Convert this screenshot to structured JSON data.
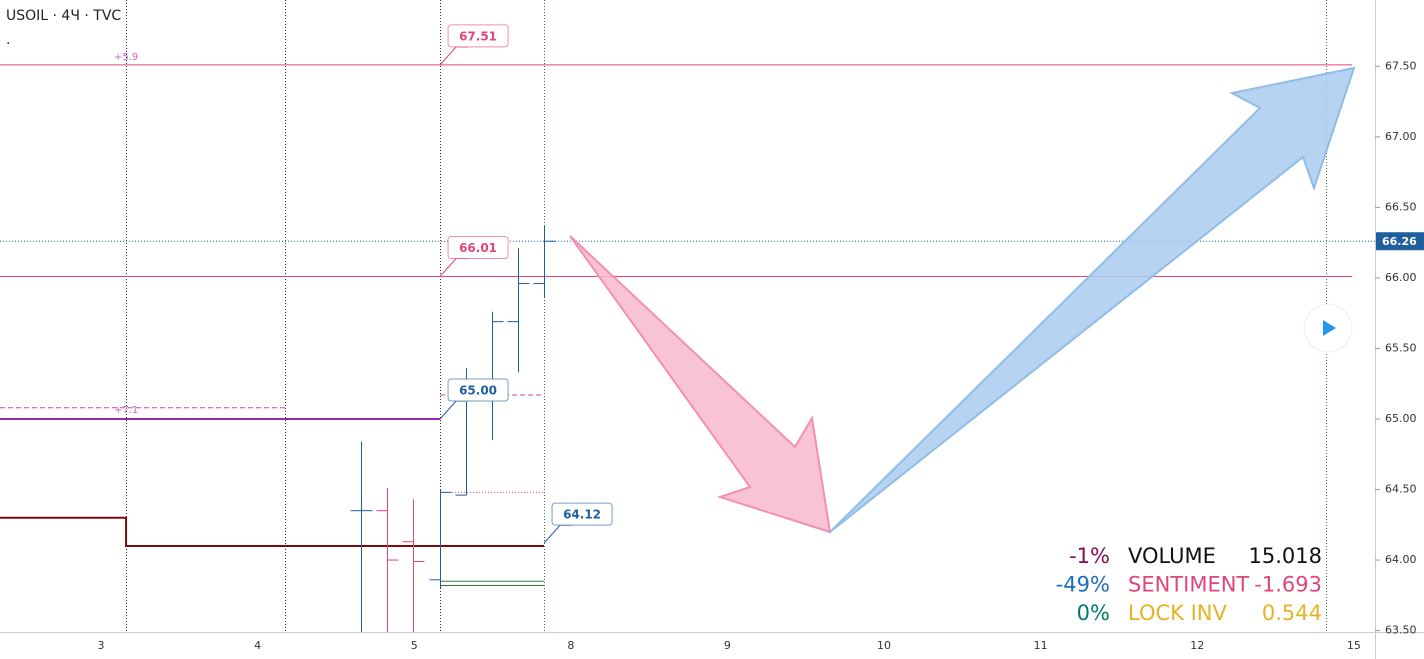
{
  "chart_data": {
    "type": "ohlc",
    "title": "USOIL · 4Ч · TVC",
    "subtitle": ".",
    "xlim": [
      -0.645,
      8.135
    ],
    "categories": [
      "3",
      "4",
      "5",
      "8",
      "9",
      "10",
      "11",
      "12",
      "15"
    ],
    "ylim": [
      63.49,
      67.97
    ],
    "yticks": [
      {
        "value": 63.5,
        "label": "63.50"
      },
      {
        "value": 64,
        "label": "64.00"
      },
      {
        "value": 64.5,
        "label": "64.50"
      },
      {
        "value": 65,
        "label": "65.00"
      },
      {
        "value": 65.5,
        "label": "65.50"
      },
      {
        "value": 66,
        "label": "66.00"
      },
      {
        "value": 66.5,
        "label": "66.50"
      },
      {
        "value": 67,
        "label": "67.00"
      },
      {
        "value": 67.5,
        "label": "67.50"
      }
    ],
    "up_color": "#1f5f9e",
    "down_color": "#e0457b",
    "bars": {
      "x": [
        1.66,
        1.826,
        1.993,
        2.165,
        2.331,
        2.497,
        2.663,
        2.829
      ],
      "open": [
        64.35,
        64.35,
        64.13,
        63.86,
        64.46,
        65.17,
        65.69,
        65.96
      ],
      "high": [
        64.84,
        64.51,
        64.43,
        64.5,
        65.36,
        65.76,
        66.21,
        66.37
      ],
      "low": [
        63.49,
        63.49,
        63.49,
        63.8,
        64.46,
        64.85,
        65.33,
        65.86
      ],
      "close": [
        64.35,
        64.0,
        63.99,
        64.48,
        65.17,
        65.69,
        65.96,
        66.26
      ]
    },
    "lines": [
      {
        "x": [
          -0.645,
          7.99
        ],
        "values": [
          67.51,
          67.51
        ],
        "color": "#e0457b",
        "width": 1,
        "dash": "none"
      },
      {
        "x": [
          -0.645,
          7.99
        ],
        "values": [
          66.01,
          66.01
        ],
        "color": "#e0457b",
        "width": 1,
        "dash": "none"
      },
      {
        "x": [
          -0.645,
          2.165
        ],
        "values": [
          65,
          65
        ],
        "color": "#9c27b0",
        "width": 2,
        "dash": "none"
      },
      {
        "x": [
          -0.645,
          1.175
        ],
        "values": [
          65.08,
          65.08
        ],
        "color": "#d04a9a",
        "width": 1,
        "dash": "5 3"
      },
      {
        "x": [
          2.165,
          2.829
        ],
        "values": [
          65.17,
          65.17
        ],
        "color": "#d04a9a",
        "width": 1,
        "dash": "5 3"
      },
      {
        "x": [
          2.165,
          2.829
        ],
        "values": [
          64.48,
          64.48
        ],
        "color": "#e0457b",
        "width": 1,
        "dash": "1 2"
      },
      {
        "x": [
          -0.645,
          0.16,
          0.16,
          2.829
        ],
        "values": [
          64.3,
          64.3,
          64.1,
          64.1
        ],
        "color": "#7b0a0a",
        "width": 2,
        "dash": "none"
      },
      {
        "x": [
          2.165,
          2.829
        ],
        "values": [
          63.85,
          63.85
        ],
        "color": "#2e7d32",
        "width": 1,
        "dash": "none"
      },
      {
        "x": [
          2.165,
          2.829
        ],
        "values": [
          63.82,
          63.82
        ],
        "color": "#2e7d32",
        "width": 1,
        "dash": "none"
      },
      {
        "x": [
          -0.645,
          8.135
        ],
        "values": [
          66.26,
          66.26
        ],
        "color": "#1f5f9e",
        "width": 1,
        "dash": "1 2"
      }
    ],
    "vlines": [
      {
        "x": 0.16,
        "color": "#333"
      },
      {
        "x": 1.175,
        "color": "#333"
      },
      {
        "x": 2.165,
        "color": "#333"
      },
      {
        "x": 2.829,
        "color": "#2e7d32"
      },
      {
        "x": 7.823,
        "color": "#2e7d32"
      }
    ],
    "price_labels": [
      {
        "x": 2.165,
        "value": 67.51,
        "color": "#e0457b"
      },
      {
        "x": 2.165,
        "value": 66.01,
        "color": "#e0457b"
      },
      {
        "x": 2.165,
        "value": 65,
        "label": "65.00",
        "color": "#1f5f9e"
      },
      {
        "x": 2.829,
        "value": 64.12,
        "color": "#1f5f9e"
      }
    ],
    "notes": [
      "+5.9",
      "+7.1"
    ],
    "last_price": 66.26,
    "indicators": [
      {
        "change": "-1%",
        "name": "VOLUME",
        "value": "15.018",
        "colors": [
          "#880e4f",
          "#111",
          "#111"
        ]
      },
      {
        "change": "-49%",
        "name": "SENTIMENT",
        "value": "-1.693",
        "colors": [
          "#1e6fba",
          "#e0457b",
          "#e0457b"
        ]
      },
      {
        "change": "0%",
        "name": "LOCK INV",
        "value": "0.544",
        "colors": [
          "#00796b",
          "#e6b325",
          "#e6b325"
        ]
      }
    ]
  }
}
